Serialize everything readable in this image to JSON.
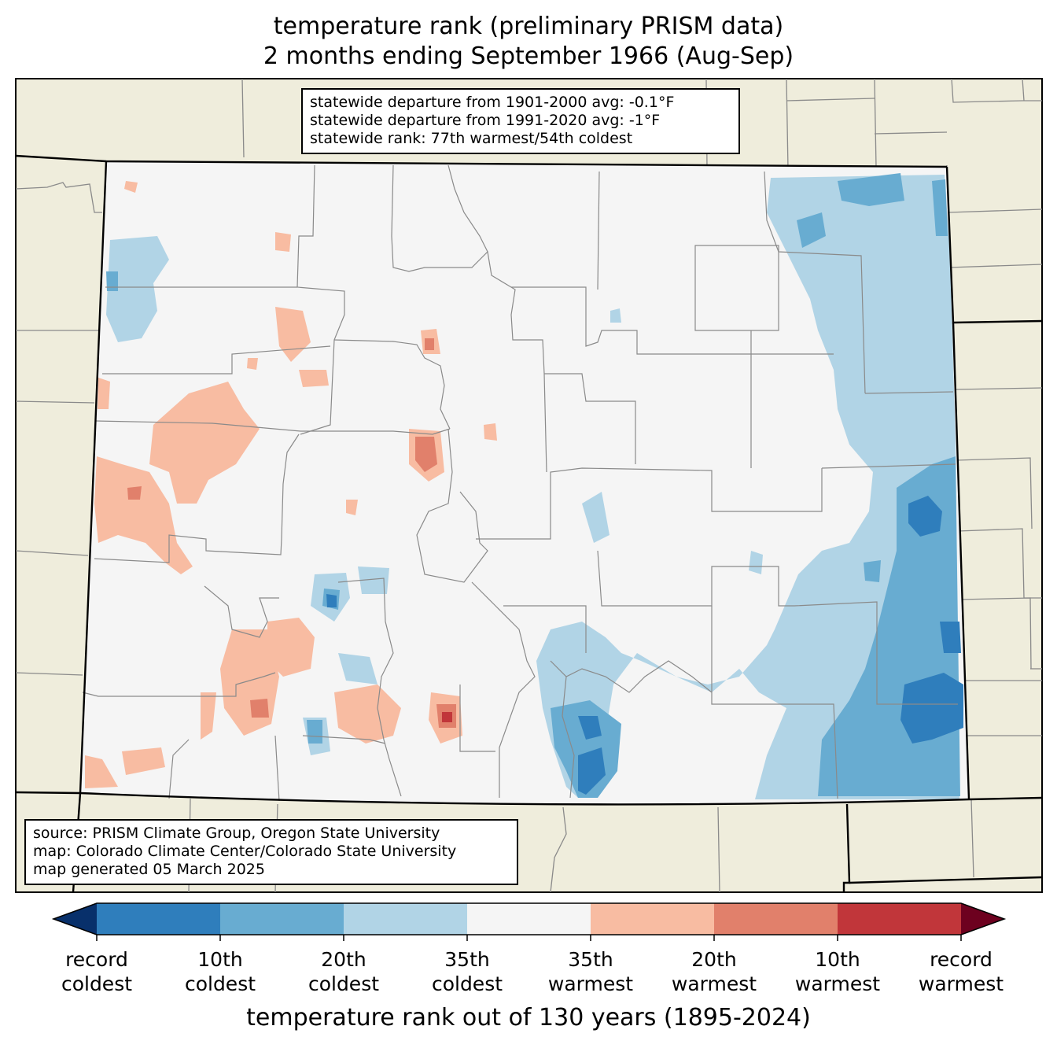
{
  "title_line1": "temperature rank (preliminary PRISM data)",
  "title_line2": "2 months ending September 1966 (Aug-Sep)",
  "stats": {
    "line1": "statewide departure from 1901-2000 avg: -0.1°F",
    "line2": "statewide departure from 1991-2020 avg: -1°F",
    "line3": "statewide rank: 77th warmest/54th coldest"
  },
  "source": {
    "line1": "source: PRISM Climate Group, Oregon State University",
    "line2": "map: Colorado Climate Center/Colorado State University",
    "line3": "map generated 05 March 2025"
  },
  "colorbar": {
    "label": "temperature rank out of 130 years (1895-2024)",
    "ticks": [
      {
        "line1": "record",
        "line2": "coldest"
      },
      {
        "line1": "10th",
        "line2": "coldest"
      },
      {
        "line1": "20th",
        "line2": "coldest"
      },
      {
        "line1": "35th",
        "line2": "coldest"
      },
      {
        "line1": "35th",
        "line2": "warmest"
      },
      {
        "line1": "20th",
        "line2": "warmest"
      },
      {
        "line1": "10th",
        "line2": "warmest"
      },
      {
        "line1": "record",
        "line2": "warmest"
      }
    ],
    "colors": {
      "record_coldest_extend": "#08306b",
      "cold_1_10": "#2f7ebc",
      "cold_10_20": "#68acd1",
      "cold_20_35": "#b1d4e6",
      "near_normal": "#f5f5f5",
      "warm_20_35": "#f8bca2",
      "warm_10_20": "#e1806b",
      "warm_1_10": "#c1363a",
      "record_warmest_extend": "#6d011f"
    }
  },
  "map_colors": {
    "land_outside": "#efeddc",
    "county_lines": "#8a8a8a",
    "state_lines": "#000000"
  }
}
